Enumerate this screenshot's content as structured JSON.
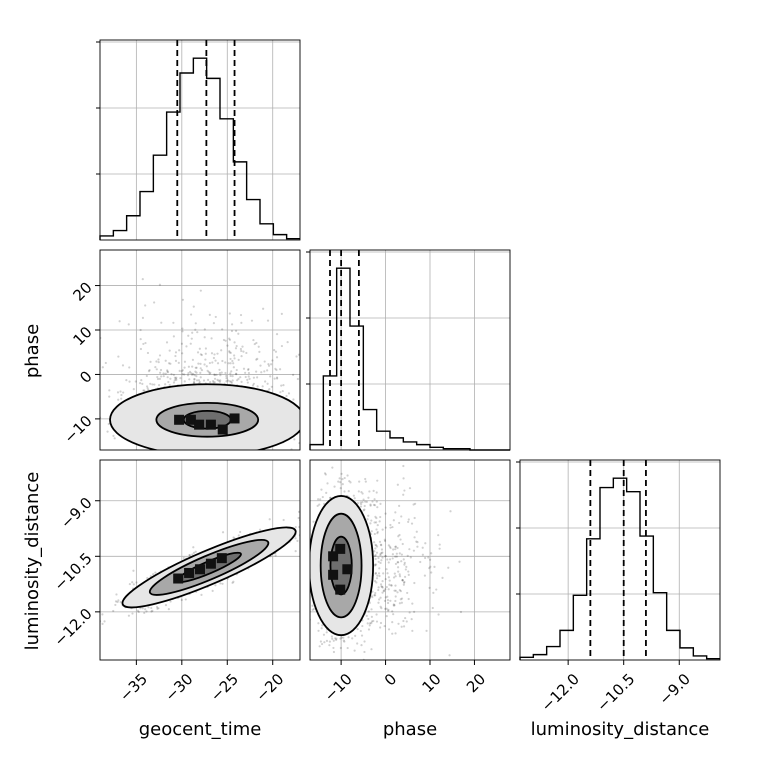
{
  "chart_data": {
    "type": "corner",
    "parameters": [
      "geocent_time",
      "phase",
      "luminosity_distance"
    ],
    "grid": true,
    "axes_labels": {
      "x": [
        "geocent_time",
        "phase",
        "luminosity_distance"
      ],
      "y": [
        "phase",
        "luminosity_distance"
      ]
    },
    "ranges": {
      "geocent_time": [
        -39,
        -17
      ],
      "phase": [
        -17,
        28
      ],
      "luminosity_distance": [
        -13.3,
        -7.9
      ]
    },
    "ticks": {
      "geocent_time": [
        -35,
        -30,
        -25,
        -20
      ],
      "phase": [
        -10,
        0,
        10,
        20
      ],
      "luminosity_distance": [
        -12.0,
        -10.5,
        -9.0
      ]
    },
    "tick_labels": {
      "geocent_time": [
        "−35",
        "−30",
        "−25",
        "−20"
      ],
      "phase": [
        "−10",
        "0",
        "10",
        "20"
      ],
      "luminosity_distance": [
        "−12.0",
        "−10.5",
        "−9.0"
      ]
    },
    "histograms": [
      {
        "parameter": "geocent_time",
        "bin_edges": [
          -39,
          -37.53,
          -36.07,
          -34.6,
          -33.13,
          -31.67,
          -30.2,
          -28.73,
          -27.27,
          -25.8,
          -24.33,
          -22.87,
          -21.4,
          -19.93,
          -18.47,
          -17
        ],
        "counts": [
          3,
          7,
          18,
          36,
          63,
          95,
          124,
          135,
          120,
          90,
          58,
          30,
          12,
          4,
          1
        ],
        "quantile_lines": [
          -30.5,
          -27.3,
          -24.2
        ]
      },
      {
        "parameter": "phase",
        "bin_edges": [
          -17,
          -14,
          -11,
          -8,
          -5,
          -2,
          1,
          4,
          7,
          10,
          13,
          16,
          19,
          22,
          25,
          28
        ],
        "counts": [
          4,
          55,
          135,
          92,
          30,
          14,
          9,
          6,
          4,
          2,
          1,
          1,
          0,
          0,
          0
        ],
        "quantile_lines": [
          -12.5,
          -10,
          -6
        ]
      },
      {
        "parameter": "luminosity_distance",
        "bin_edges": [
          -13.3,
          -12.94,
          -12.58,
          -12.22,
          -11.86,
          -11.5,
          -11.14,
          -10.78,
          -10.42,
          -10.06,
          -9.7,
          -9.34,
          -8.98,
          -8.62,
          -8.26,
          -7.9
        ],
        "counts": [
          2,
          4,
          10,
          22,
          48,
          90,
          128,
          135,
          125,
          92,
          50,
          22,
          9,
          3,
          1
        ],
        "quantile_lines": [
          -11.4,
          -10.5,
          -9.9
        ]
      }
    ],
    "contour_panels": [
      {
        "x_param": "geocent_time",
        "y_param": "phase",
        "center": [
          -27.2,
          -10.2
        ],
        "levels": [
          {
            "rx": 2.6,
            "ry": 2.0,
            "fill": "#6e6e6e"
          },
          {
            "rx": 5.6,
            "ry": 3.8,
            "fill": "#a8a8a8"
          },
          {
            "rx": 10.7,
            "ry": 8.0,
            "fill": "#e6e6e6"
          }
        ],
        "density_cells": [
          [
            -30.3,
            -10.2
          ],
          [
            -29.0,
            -10.2
          ],
          [
            -28.1,
            -11.3
          ],
          [
            -26.8,
            -11.3
          ],
          [
            -25.5,
            -12.4
          ],
          [
            -24.2,
            -9.9
          ]
        ]
      },
      {
        "x_param": "geocent_time",
        "y_param": "luminosity_distance",
        "center": [
          -27.0,
          -10.8
        ],
        "slope": 0.105,
        "levels": [
          {
            "half_length": 3.5,
            "half_width": 0.16,
            "fill": "#6e6e6e"
          },
          {
            "half_length": 6.5,
            "half_width": 0.32,
            "fill": "#a8a8a8"
          },
          {
            "half_length": 9.5,
            "half_width": 0.45,
            "fill": "#e6e6e6"
          }
        ],
        "density_cells": [
          [
            -30.4,
            -11.1
          ],
          [
            -29.2,
            -10.95
          ],
          [
            -28.0,
            -10.85
          ],
          [
            -26.8,
            -10.7
          ],
          [
            -25.6,
            -10.55
          ]
        ]
      },
      {
        "x_param": "phase",
        "y_param": "luminosity_distance",
        "center": [
          -10.0,
          -10.75
        ],
        "levels": [
          {
            "rx": 2.4,
            "ry": 0.78,
            "fill": "#6e6e6e"
          },
          {
            "rx": 4.6,
            "ry": 1.4,
            "fill": "#a8a8a8"
          },
          {
            "rx": 7.2,
            "ry": 1.88,
            "fill": "#e6e6e6"
          }
        ],
        "density_cells": [
          [
            -11.8,
            -10.5
          ],
          [
            -11.8,
            -11.0
          ],
          [
            -10.2,
            -10.3
          ],
          [
            -10.2,
            -11.4
          ],
          [
            -8.6,
            -10.85
          ]
        ]
      }
    ]
  }
}
